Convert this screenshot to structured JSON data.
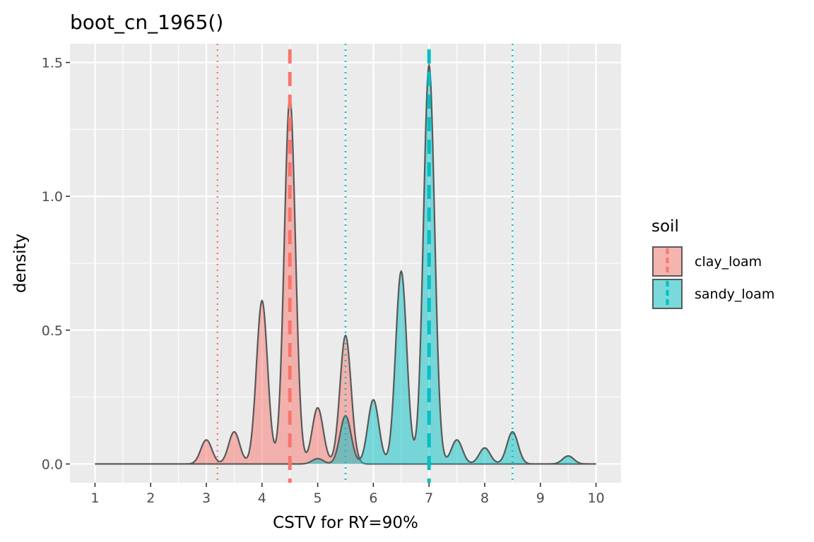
{
  "chart_data": {
    "type": "area",
    "title": "boot_cn_1965()",
    "xlabel": "CSTV for RY=90%",
    "ylabel": "density",
    "xlim": [
      0.55,
      10.45
    ],
    "ylim": [
      -0.07,
      1.57
    ],
    "xticks": [
      "1",
      "2",
      "3",
      "4",
      "5",
      "6",
      "7",
      "8",
      "9",
      "10"
    ],
    "yticks": [
      "0.0",
      "0.5",
      "1.0",
      "1.5"
    ],
    "grid": true,
    "legend": {
      "title": "soil",
      "position": "right",
      "entries": [
        "clay_loam",
        "sandy_loam"
      ]
    },
    "series": [
      {
        "name": "clay_loam",
        "color": "#F8766D",
        "median": 4.5,
        "ci": [
          3.2,
          5.5
        ],
        "peaks": [
          [
            3.0,
            0.09
          ],
          [
            3.5,
            0.12
          ],
          [
            4.0,
            0.61
          ],
          [
            4.5,
            1.37
          ],
          [
            5.0,
            0.21
          ],
          [
            5.5,
            0.48
          ]
        ]
      },
      {
        "name": "sandy_loam",
        "color": "#00BFC4",
        "median": 7.0,
        "ci": [
          5.5,
          8.5
        ],
        "peaks": [
          [
            5.0,
            0.02
          ],
          [
            5.5,
            0.18
          ],
          [
            6.0,
            0.24
          ],
          [
            6.5,
            0.72
          ],
          [
            7.0,
            1.49
          ],
          [
            7.5,
            0.09
          ],
          [
            8.0,
            0.06
          ],
          [
            8.5,
            0.12
          ],
          [
            9.5,
            0.03
          ]
        ]
      }
    ]
  }
}
